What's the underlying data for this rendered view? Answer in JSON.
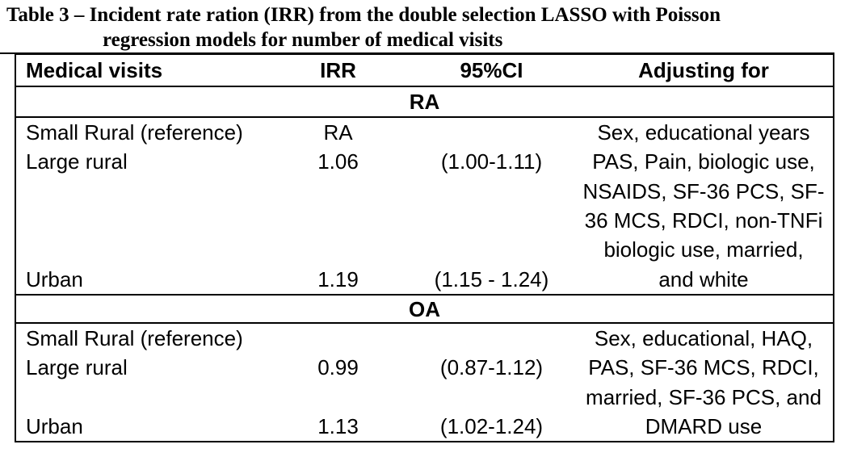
{
  "title": {
    "line1": "Table 3 – Incident rate ration (IRR) from the double selection LASSO with Poisson",
    "line2": "regression models for number of medical visits"
  },
  "colors": {
    "text": "#000000",
    "border": "#000000",
    "background": "#ffffff"
  },
  "table": {
    "headers": {
      "medical_visits": "Medical visits",
      "irr": "IRR",
      "ci": "95%CI",
      "adjusting": "Adjusting for"
    },
    "sections": [
      {
        "label": "RA",
        "rows": [
          {
            "visits": "Small Rural (reference)",
            "irr": "RA",
            "ci": ""
          },
          {
            "visits": "Large rural",
            "irr": "1.06",
            "ci": "(1.00-1.11)"
          },
          {
            "visits": "Urban",
            "irr": "1.19",
            "ci": "(1.15 - 1.24)"
          }
        ],
        "adjusting_lines": [
          "Sex, educational years",
          "PAS, Pain, biologic use,",
          "NSAIDS, SF-36 PCS, SF-",
          "36 MCS, RDCI, non-TNFi",
          "biologic use, married,",
          "and white"
        ]
      },
      {
        "label": "OA",
        "rows": [
          {
            "visits": "Small Rural (reference)",
            "irr": "",
            "ci": ""
          },
          {
            "visits": "Large rural",
            "irr": "0.99",
            "ci": "(0.87-1.12)"
          },
          {
            "visits": "Urban",
            "irr": "1.13",
            "ci": "(1.02-1.24)"
          }
        ],
        "adjusting_lines": [
          "Sex, educational, HAQ,",
          "PAS, SF-36 MCS, RDCI,",
          "married, SF-36 PCS, and",
          "DMARD use"
        ]
      }
    ]
  }
}
